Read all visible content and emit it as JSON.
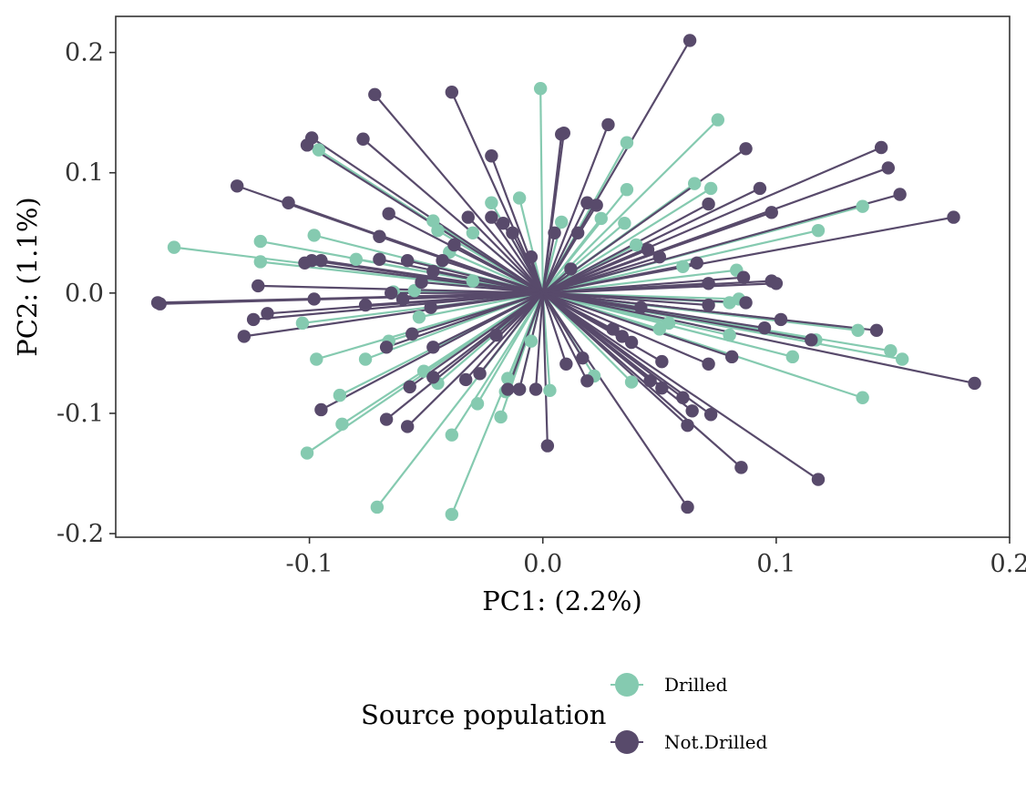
{
  "chart_data": {
    "type": "scatter",
    "description_free": true,
    "xlabel": "PC1: (2.2%)",
    "ylabel": "PC2: (1.1%)",
    "xlim": [
      -0.183,
      0.2
    ],
    "ylim": [
      -0.203,
      0.23
    ],
    "x_ticks": [
      -0.1,
      0.0,
      0.1,
      0.2
    ],
    "x_tick_labels": [
      "-0.1",
      "0.0",
      "0.1",
      "0.2"
    ],
    "y_ticks": [
      -0.2,
      -0.1,
      0.0,
      0.1,
      0.2
    ],
    "y_tick_labels": [
      "-0.2",
      "-0.1",
      "0.0",
      "0.1",
      "0.2"
    ],
    "grid": false,
    "centroid": [
      0.0,
      0.0
    ],
    "legend": {
      "title": "Source population",
      "position": "bottom",
      "entries": [
        {
          "label": "Drilled",
          "color": "#85CAB0"
        },
        {
          "label": "Not.Drilled",
          "color": "#584A6B"
        }
      ]
    },
    "series": [
      {
        "name": "Drilled",
        "color": "#85CAB0",
        "points": [
          [
            -0.158,
            0.038
          ],
          [
            -0.121,
            0.043
          ],
          [
            -0.121,
            0.026
          ],
          [
            -0.098,
            0.048
          ],
          [
            -0.096,
            0.119
          ],
          [
            -0.08,
            0.028
          ],
          [
            -0.064,
            0.001
          ],
          [
            -0.055,
            0.002
          ],
          [
            -0.047,
            0.06
          ],
          [
            -0.045,
            0.052
          ],
          [
            -0.04,
            0.034
          ],
          [
            -0.03,
            0.05
          ],
          [
            -0.022,
            0.075
          ],
          [
            -0.01,
            0.079
          ],
          [
            0.008,
            0.059
          ],
          [
            0.025,
            0.062
          ],
          [
            0.035,
            0.058
          ],
          [
            0.036,
            0.125
          ],
          [
            0.036,
            0.086
          ],
          [
            0.072,
            0.087
          ],
          [
            0.075,
            0.144
          ],
          [
            0.065,
            0.091
          ],
          [
            0.118,
            0.052
          ],
          [
            0.137,
            0.072
          ],
          [
            0.083,
            0.019
          ],
          [
            -0.001,
            0.17
          ],
          [
            -0.103,
            -0.025
          ],
          [
            -0.097,
            -0.055
          ],
          [
            -0.076,
            -0.055
          ],
          [
            -0.087,
            -0.085
          ],
          [
            -0.086,
            -0.109
          ],
          [
            -0.071,
            -0.178
          ],
          [
            -0.101,
            -0.133
          ],
          [
            -0.053,
            -0.02
          ],
          [
            -0.066,
            -0.04
          ],
          [
            -0.051,
            -0.065
          ],
          [
            -0.045,
            -0.075
          ],
          [
            -0.039,
            -0.118
          ],
          [
            -0.039,
            -0.184
          ],
          [
            -0.028,
            -0.092
          ],
          [
            -0.018,
            -0.103
          ],
          [
            -0.015,
            -0.071
          ],
          [
            -0.016,
            -0.082
          ],
          [
            -0.01,
            -0.08
          ],
          [
            0.003,
            -0.081
          ],
          [
            0.022,
            -0.069
          ],
          [
            0.038,
            -0.074
          ],
          [
            0.054,
            -0.025
          ],
          [
            0.08,
            -0.035
          ],
          [
            0.084,
            -0.005
          ],
          [
            0.08,
            -0.008
          ],
          [
            0.117,
            -0.039
          ],
          [
            0.107,
            -0.053
          ],
          [
            0.135,
            -0.031
          ],
          [
            0.137,
            -0.087
          ],
          [
            0.149,
            -0.048
          ],
          [
            0.154,
            -0.055
          ],
          [
            0.06,
            0.022
          ],
          [
            0.05,
            -0.03
          ],
          [
            0.04,
            0.04
          ],
          [
            -0.03,
            0.01
          ],
          [
            -0.005,
            -0.04
          ]
        ]
      },
      {
        "name": "Not.Drilled",
        "color": "#584A6B",
        "points": [
          [
            0.063,
            0.21
          ],
          [
            -0.072,
            0.165
          ],
          [
            -0.039,
            0.167
          ],
          [
            -0.131,
            0.089
          ],
          [
            -0.109,
            0.075
          ],
          [
            -0.099,
            0.129
          ],
          [
            -0.101,
            0.123
          ],
          [
            -0.077,
            0.128
          ],
          [
            -0.066,
            0.066
          ],
          [
            -0.07,
            0.047
          ],
          [
            -0.102,
            0.025
          ],
          [
            -0.099,
            0.027
          ],
          [
            -0.095,
            0.027
          ],
          [
            -0.07,
            0.028
          ],
          [
            -0.058,
            0.027
          ],
          [
            -0.052,
            0.009
          ],
          [
            -0.047,
            0.018
          ],
          [
            -0.043,
            0.027
          ],
          [
            -0.032,
            0.063
          ],
          [
            -0.022,
            0.063
          ],
          [
            -0.022,
            0.114
          ],
          [
            -0.017,
            0.058
          ],
          [
            -0.013,
            0.05
          ],
          [
            -0.005,
            0.03
          ],
          [
            0.009,
            0.133
          ],
          [
            0.008,
            0.132
          ],
          [
            0.028,
            0.14
          ],
          [
            0.019,
            0.075
          ],
          [
            0.023,
            0.073
          ],
          [
            0.015,
            0.05
          ],
          [
            0.005,
            0.05
          ],
          [
            0.045,
            0.036
          ],
          [
            0.071,
            0.074
          ],
          [
            0.066,
            0.025
          ],
          [
            0.087,
            0.12
          ],
          [
            0.093,
            0.087
          ],
          [
            0.098,
            0.067
          ],
          [
            0.145,
            0.121
          ],
          [
            0.148,
            0.104
          ],
          [
            0.153,
            0.082
          ],
          [
            0.176,
            0.063
          ],
          [
            0.086,
            0.013
          ],
          [
            0.098,
            0.01
          ],
          [
            0.1,
            0.008
          ],
          [
            0.071,
            0.008
          ],
          [
            -0.165,
            -0.008
          ],
          [
            -0.164,
            -0.009
          ],
          [
            -0.122,
            0.006
          ],
          [
            -0.065,
            0.0
          ],
          [
            -0.098,
            -0.005
          ],
          [
            -0.118,
            -0.017
          ],
          [
            -0.124,
            -0.022
          ],
          [
            -0.128,
            -0.036
          ],
          [
            -0.076,
            -0.01
          ],
          [
            -0.06,
            -0.005
          ],
          [
            -0.056,
            -0.034
          ],
          [
            -0.048,
            -0.012
          ],
          [
            -0.067,
            -0.045
          ],
          [
            -0.047,
            -0.045
          ],
          [
            -0.057,
            -0.078
          ],
          [
            -0.047,
            -0.07
          ],
          [
            -0.095,
            -0.097
          ],
          [
            -0.067,
            -0.105
          ],
          [
            -0.058,
            -0.111
          ],
          [
            -0.033,
            -0.072
          ],
          [
            -0.027,
            -0.067
          ],
          [
            -0.015,
            -0.08
          ],
          [
            -0.01,
            -0.08
          ],
          [
            0.002,
            -0.127
          ],
          [
            -0.003,
            -0.08
          ],
          [
            0.01,
            -0.059
          ],
          [
            0.017,
            -0.054
          ],
          [
            0.019,
            -0.073
          ],
          [
            0.034,
            -0.036
          ],
          [
            0.038,
            -0.041
          ],
          [
            0.046,
            -0.073
          ],
          [
            0.051,
            -0.079
          ],
          [
            0.051,
            -0.057
          ],
          [
            0.06,
            -0.087
          ],
          [
            0.064,
            -0.098
          ],
          [
            0.062,
            -0.11
          ],
          [
            0.071,
            -0.059
          ],
          [
            0.072,
            -0.101
          ],
          [
            0.081,
            -0.053
          ],
          [
            0.085,
            -0.145
          ],
          [
            0.062,
            -0.178
          ],
          [
            0.118,
            -0.155
          ],
          [
            0.071,
            -0.01
          ],
          [
            0.087,
            -0.008
          ],
          [
            0.095,
            -0.029
          ],
          [
            0.102,
            -0.022
          ],
          [
            0.115,
            -0.039
          ],
          [
            0.143,
            -0.031
          ],
          [
            0.185,
            -0.075
          ],
          [
            0.05,
            0.03
          ],
          [
            0.042,
            -0.012
          ],
          [
            0.03,
            -0.03
          ],
          [
            -0.038,
            0.04
          ],
          [
            0.012,
            0.02
          ],
          [
            -0.02,
            -0.035
          ]
        ]
      }
    ]
  }
}
